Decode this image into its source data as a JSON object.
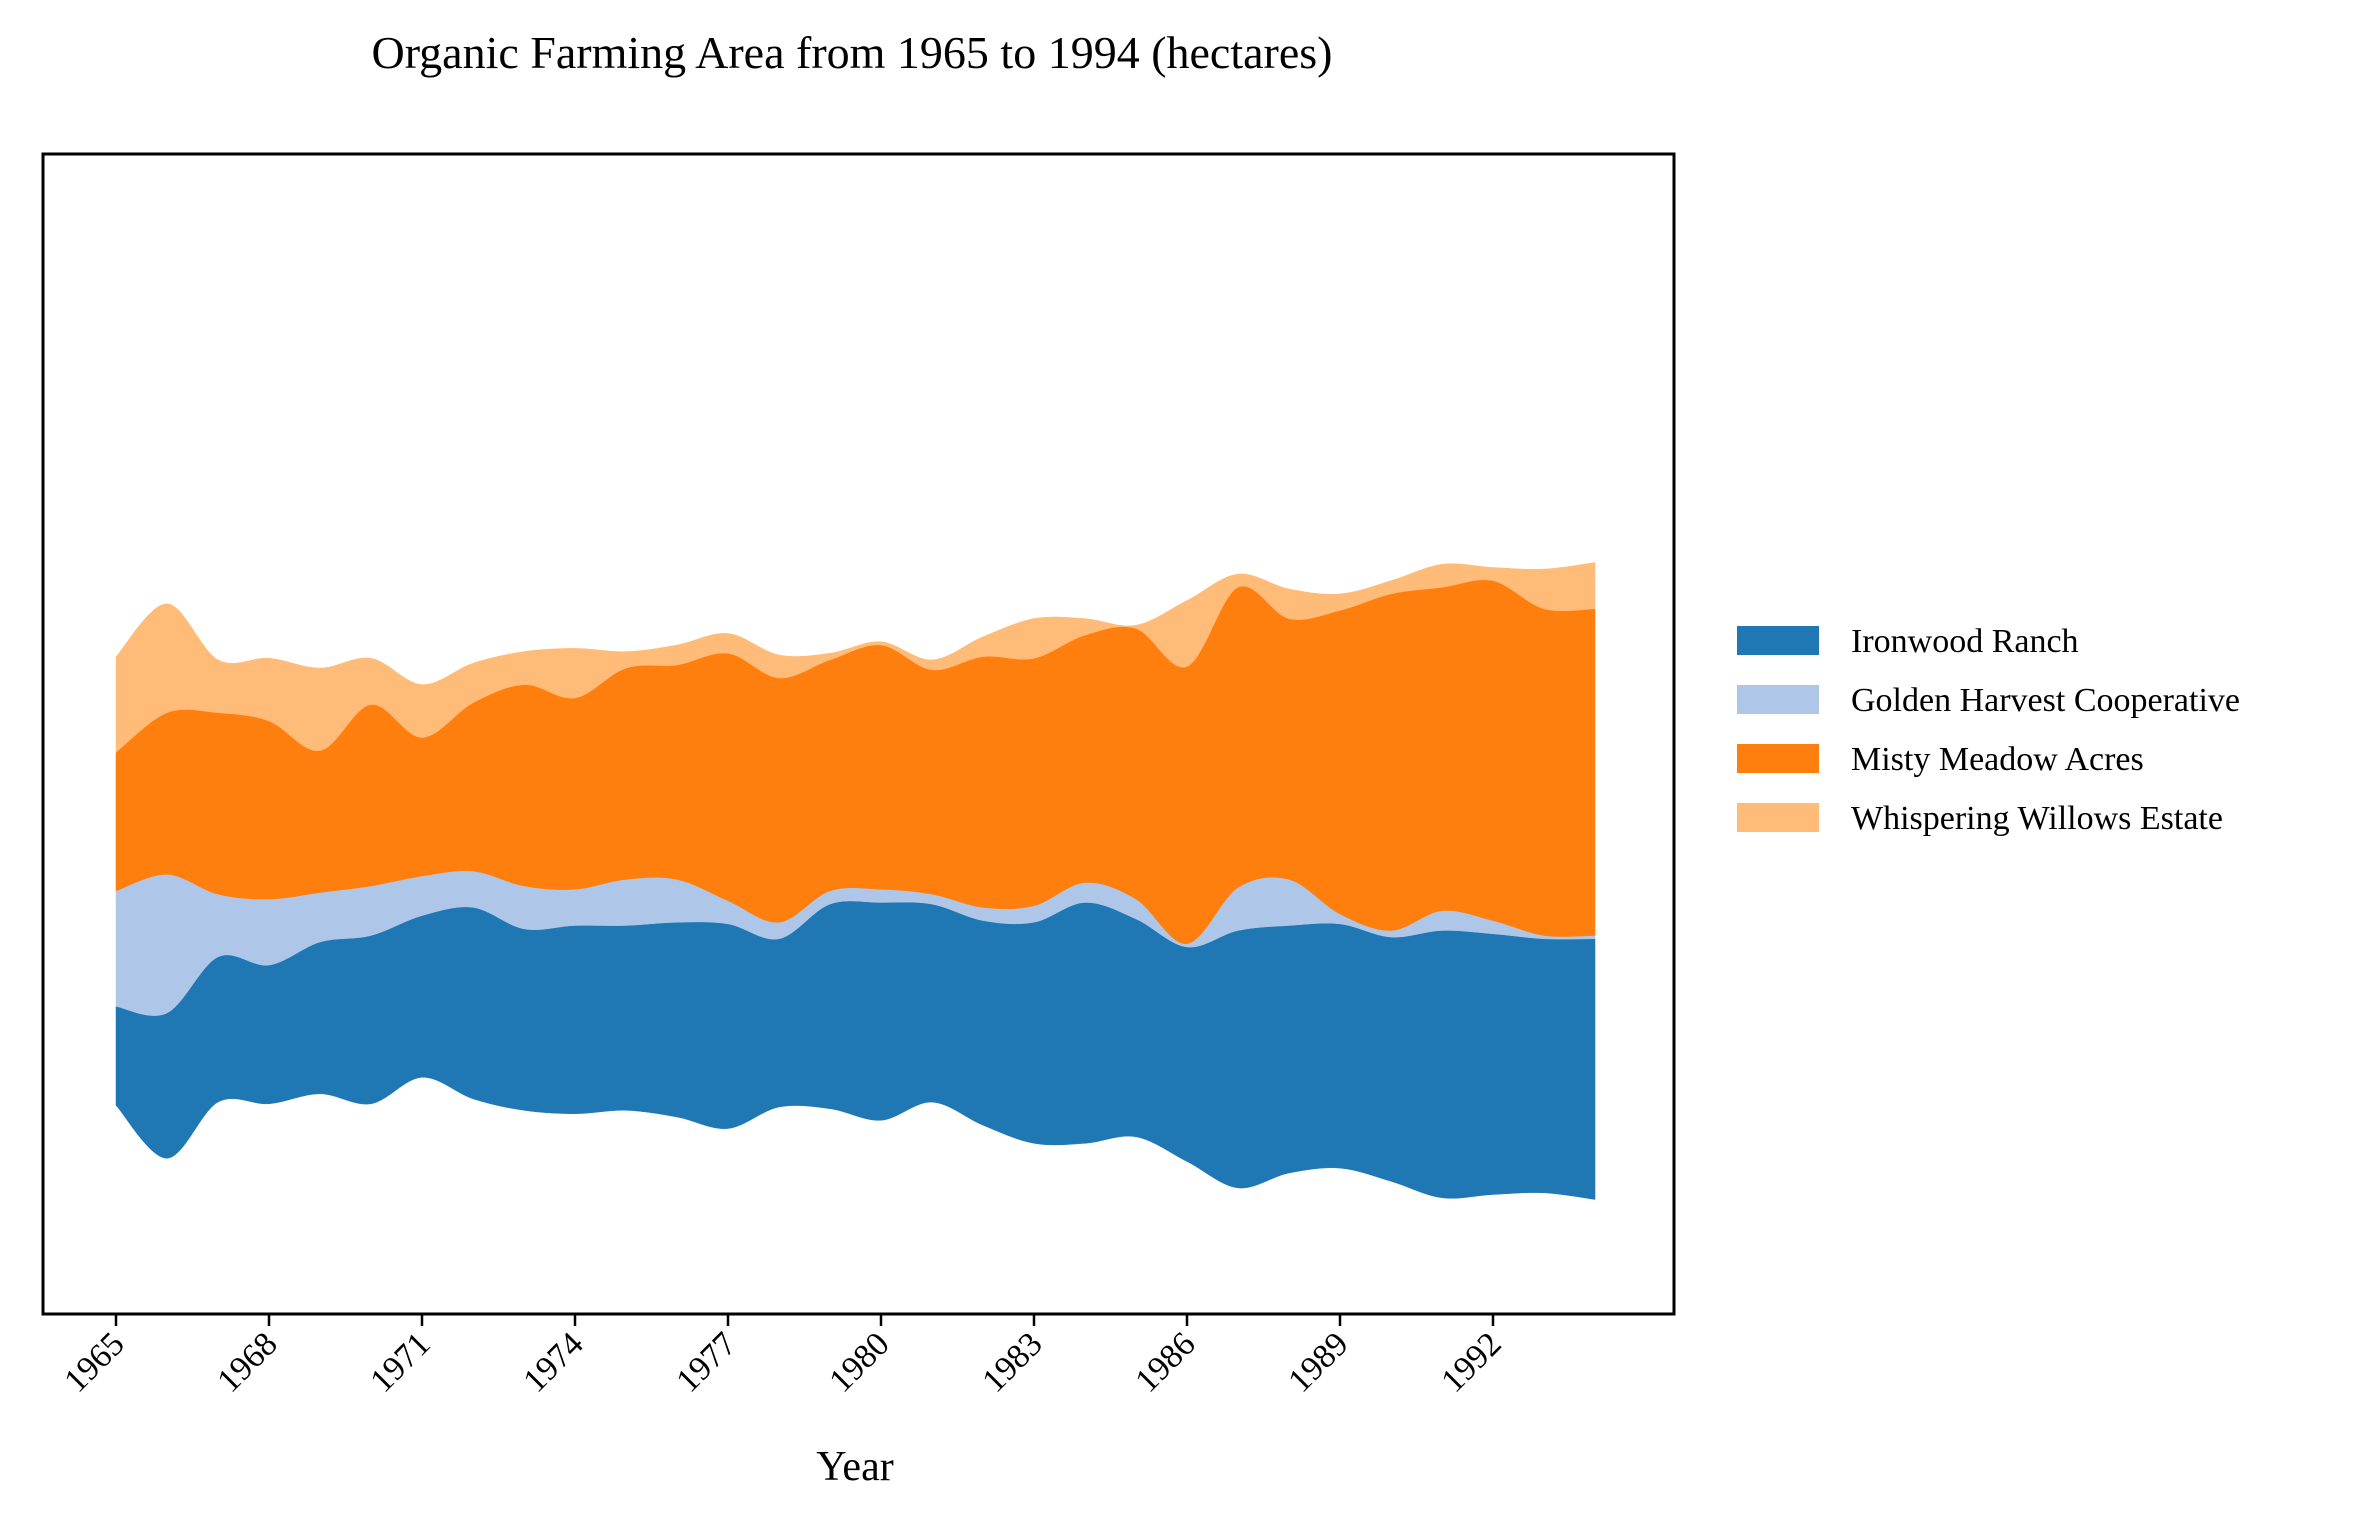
{
  "chart_data": {
    "type": "area",
    "subtype": "streamgraph",
    "title": "Organic Farming Area from 1965 to 1994 (hectares)",
    "xlabel": "Year",
    "ylabel": "",
    "x": [
      1965,
      1966,
      1967,
      1968,
      1969,
      1970,
      1971,
      1972,
      1973,
      1974,
      1975,
      1976,
      1977,
      1978,
      1979,
      1980,
      1981,
      1982,
      1983,
      1984,
      1985,
      1986,
      1987,
      1988,
      1989,
      1990,
      1991,
      1992,
      1993,
      1994
    ],
    "xticks": [
      "1965",
      "1968",
      "1971",
      "1974",
      "1977",
      "1980",
      "1983",
      "1986",
      "1989",
      "1992"
    ],
    "yaxis_visible": false,
    "grid": false,
    "legend_position": "right",
    "series": [
      {
        "name": "Ironwood Ranch",
        "color": "#1f77b4",
        "values": [
          150,
          220,
          220,
          210,
          230,
          255,
          245,
          290,
          275,
          285,
          280,
          295,
          310,
          255,
          310,
          330,
          300,
          310,
          335,
          365,
          330,
          325,
          390,
          375,
          370,
          370,
          405,
          395,
          385,
          395
        ]
      },
      {
        "name": "Golden Harvest Cooperative",
        "color": "#aec7e8",
        "values": [
          175,
          210,
          95,
          100,
          75,
          75,
          60,
          55,
          65,
          55,
          70,
          65,
          35,
          25,
          20,
          20,
          15,
          20,
          25,
          30,
          30,
          5,
          65,
          70,
          15,
          10,
          30,
          20,
          5,
          5
        ]
      },
      {
        "name": "Misty Meadow Acres",
        "color": "#ff7f0e",
        "values": [
          210,
          245,
          275,
          270,
          215,
          275,
          210,
          255,
          305,
          290,
          320,
          325,
          375,
          370,
          350,
          370,
          340,
          380,
          375,
          375,
          410,
          420,
          455,
          395,
          460,
          510,
          490,
          515,
          495,
          495
        ]
      },
      {
        "name": "Whispering Willows Estate",
        "color": "#ffbb78",
        "values": [
          145,
          165,
          80,
          95,
          125,
          70,
          80,
          60,
          50,
          75,
          25,
          30,
          30,
          35,
          10,
          5,
          15,
          30,
          60,
          25,
          5,
          100,
          20,
          45,
          25,
          20,
          35,
          20,
          60,
          70
        ]
      }
    ]
  }
}
